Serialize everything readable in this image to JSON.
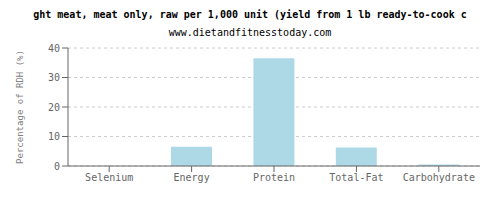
{
  "chart_data": {
    "type": "bar",
    "title": "ght meat, meat only, raw per 1,000 unit (yield from 1 lb ready-to-cook c",
    "subtitle": "www.dietandfitnesstoday.com",
    "categories": [
      "Selenium",
      "Energy",
      "Protein",
      "Total-Fat",
      "Carbohydrate"
    ],
    "values": [
      0.0,
      6.5,
      36.5,
      6.3,
      0.5
    ],
    "color": "#add8e6",
    "ylabel": "Percentage of RDH (%)",
    "ylim": [
      0,
      40
    ],
    "yticks": [
      0,
      10,
      20,
      30,
      40
    ],
    "grid": true
  }
}
